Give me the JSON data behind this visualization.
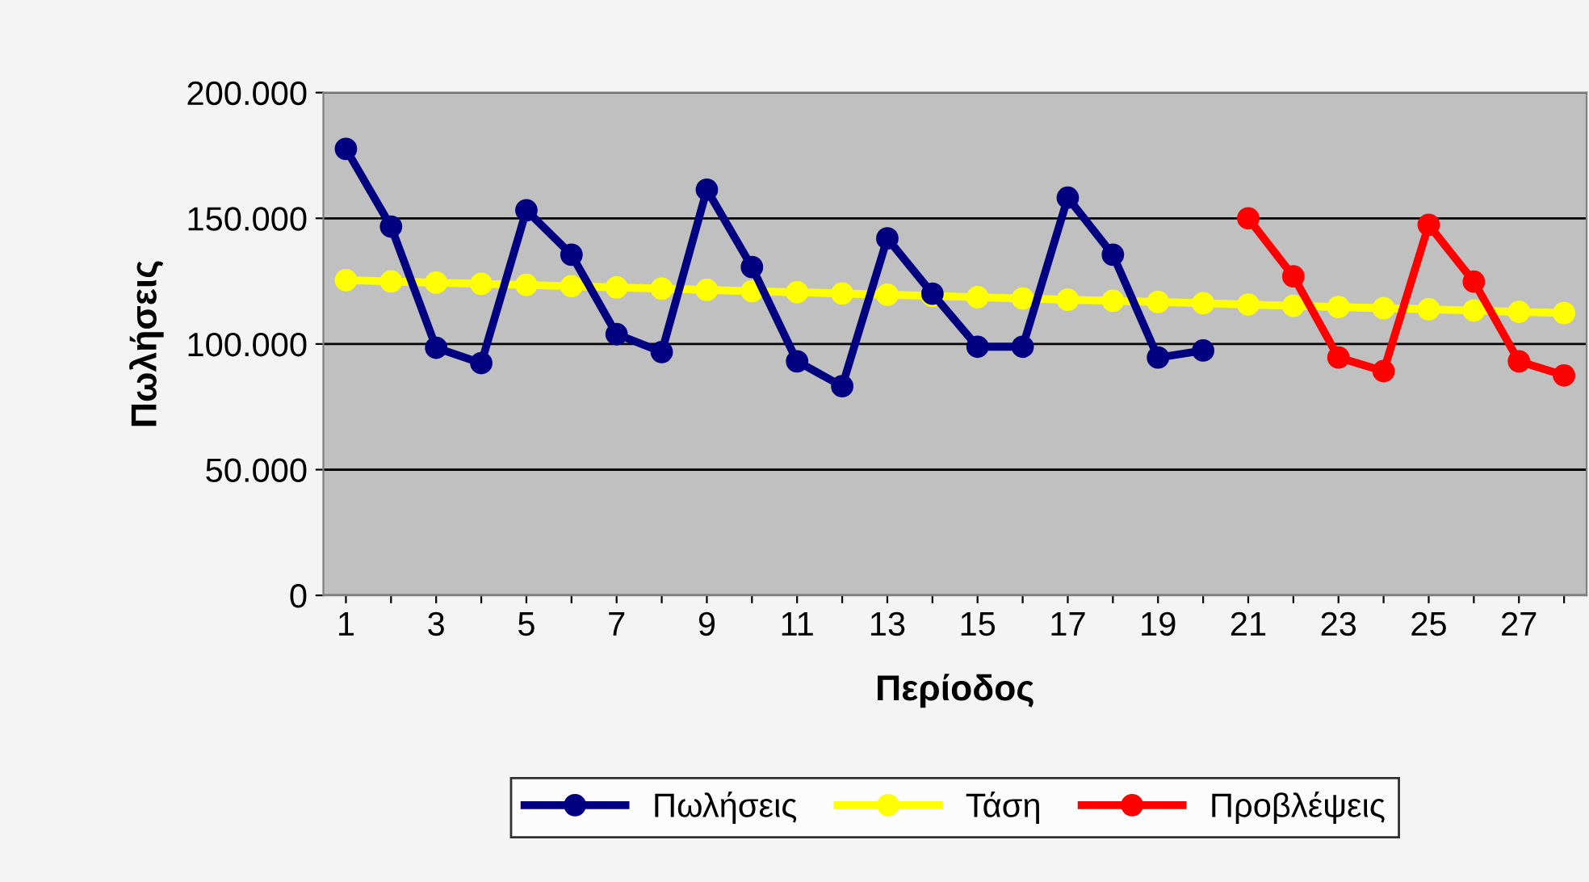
{
  "chart_data": {
    "type": "line",
    "xlabel": "Περίοδος",
    "ylabel": "Πωλήσεις",
    "categories": [
      "1",
      null,
      "3",
      null,
      "5",
      null,
      "7",
      null,
      "9",
      null,
      "11",
      null,
      "13",
      null,
      "15",
      null,
      "17",
      null,
      "19",
      null,
      "21",
      null,
      "23",
      null,
      "25",
      null,
      "27",
      null
    ],
    "series": [
      {
        "name": "Πωλήσεις",
        "color": "#000080",
        "values": [
          177600,
          146700,
          98500,
          92400,
          153200,
          135500,
          103900,
          96800,
          161400,
          130600,
          93100,
          83200,
          142000,
          120000,
          98900,
          98900,
          158200,
          135500,
          94600,
          97400,
          null,
          null,
          null,
          null,
          null,
          null,
          null,
          null
        ]
      },
      {
        "name": "Τάση",
        "color": "#ffff00",
        "values": [
          125400,
          124900,
          124400,
          123900,
          123500,
          123000,
          122500,
          122000,
          121500,
          121000,
          120600,
          120100,
          119600,
          119100,
          118600,
          118100,
          117600,
          117200,
          116700,
          116200,
          115700,
          115200,
          114700,
          114200,
          113800,
          113300,
          112800,
          112300
        ]
      },
      {
        "name": "Προβλέψεις",
        "color": "#ff0000",
        "values": [
          null,
          null,
          null,
          null,
          null,
          null,
          null,
          null,
          null,
          null,
          null,
          null,
          null,
          null,
          null,
          null,
          null,
          null,
          null,
          null,
          150000,
          126900,
          94600,
          89200,
          147400,
          124800,
          93100,
          87500
        ]
      }
    ],
    "ylim": [
      0,
      200000
    ],
    "yticks": [
      0,
      {
        "value": 50000,
        "label": "50.000"
      },
      {
        "value": 100000,
        "label": "100.000"
      },
      {
        "value": 150000,
        "label": "150.000"
      },
      {
        "value": 200000,
        "label": "200.000"
      }
    ],
    "grid": "y",
    "legend": "bottom",
    "marker": "circle",
    "line_style": "solid"
  }
}
